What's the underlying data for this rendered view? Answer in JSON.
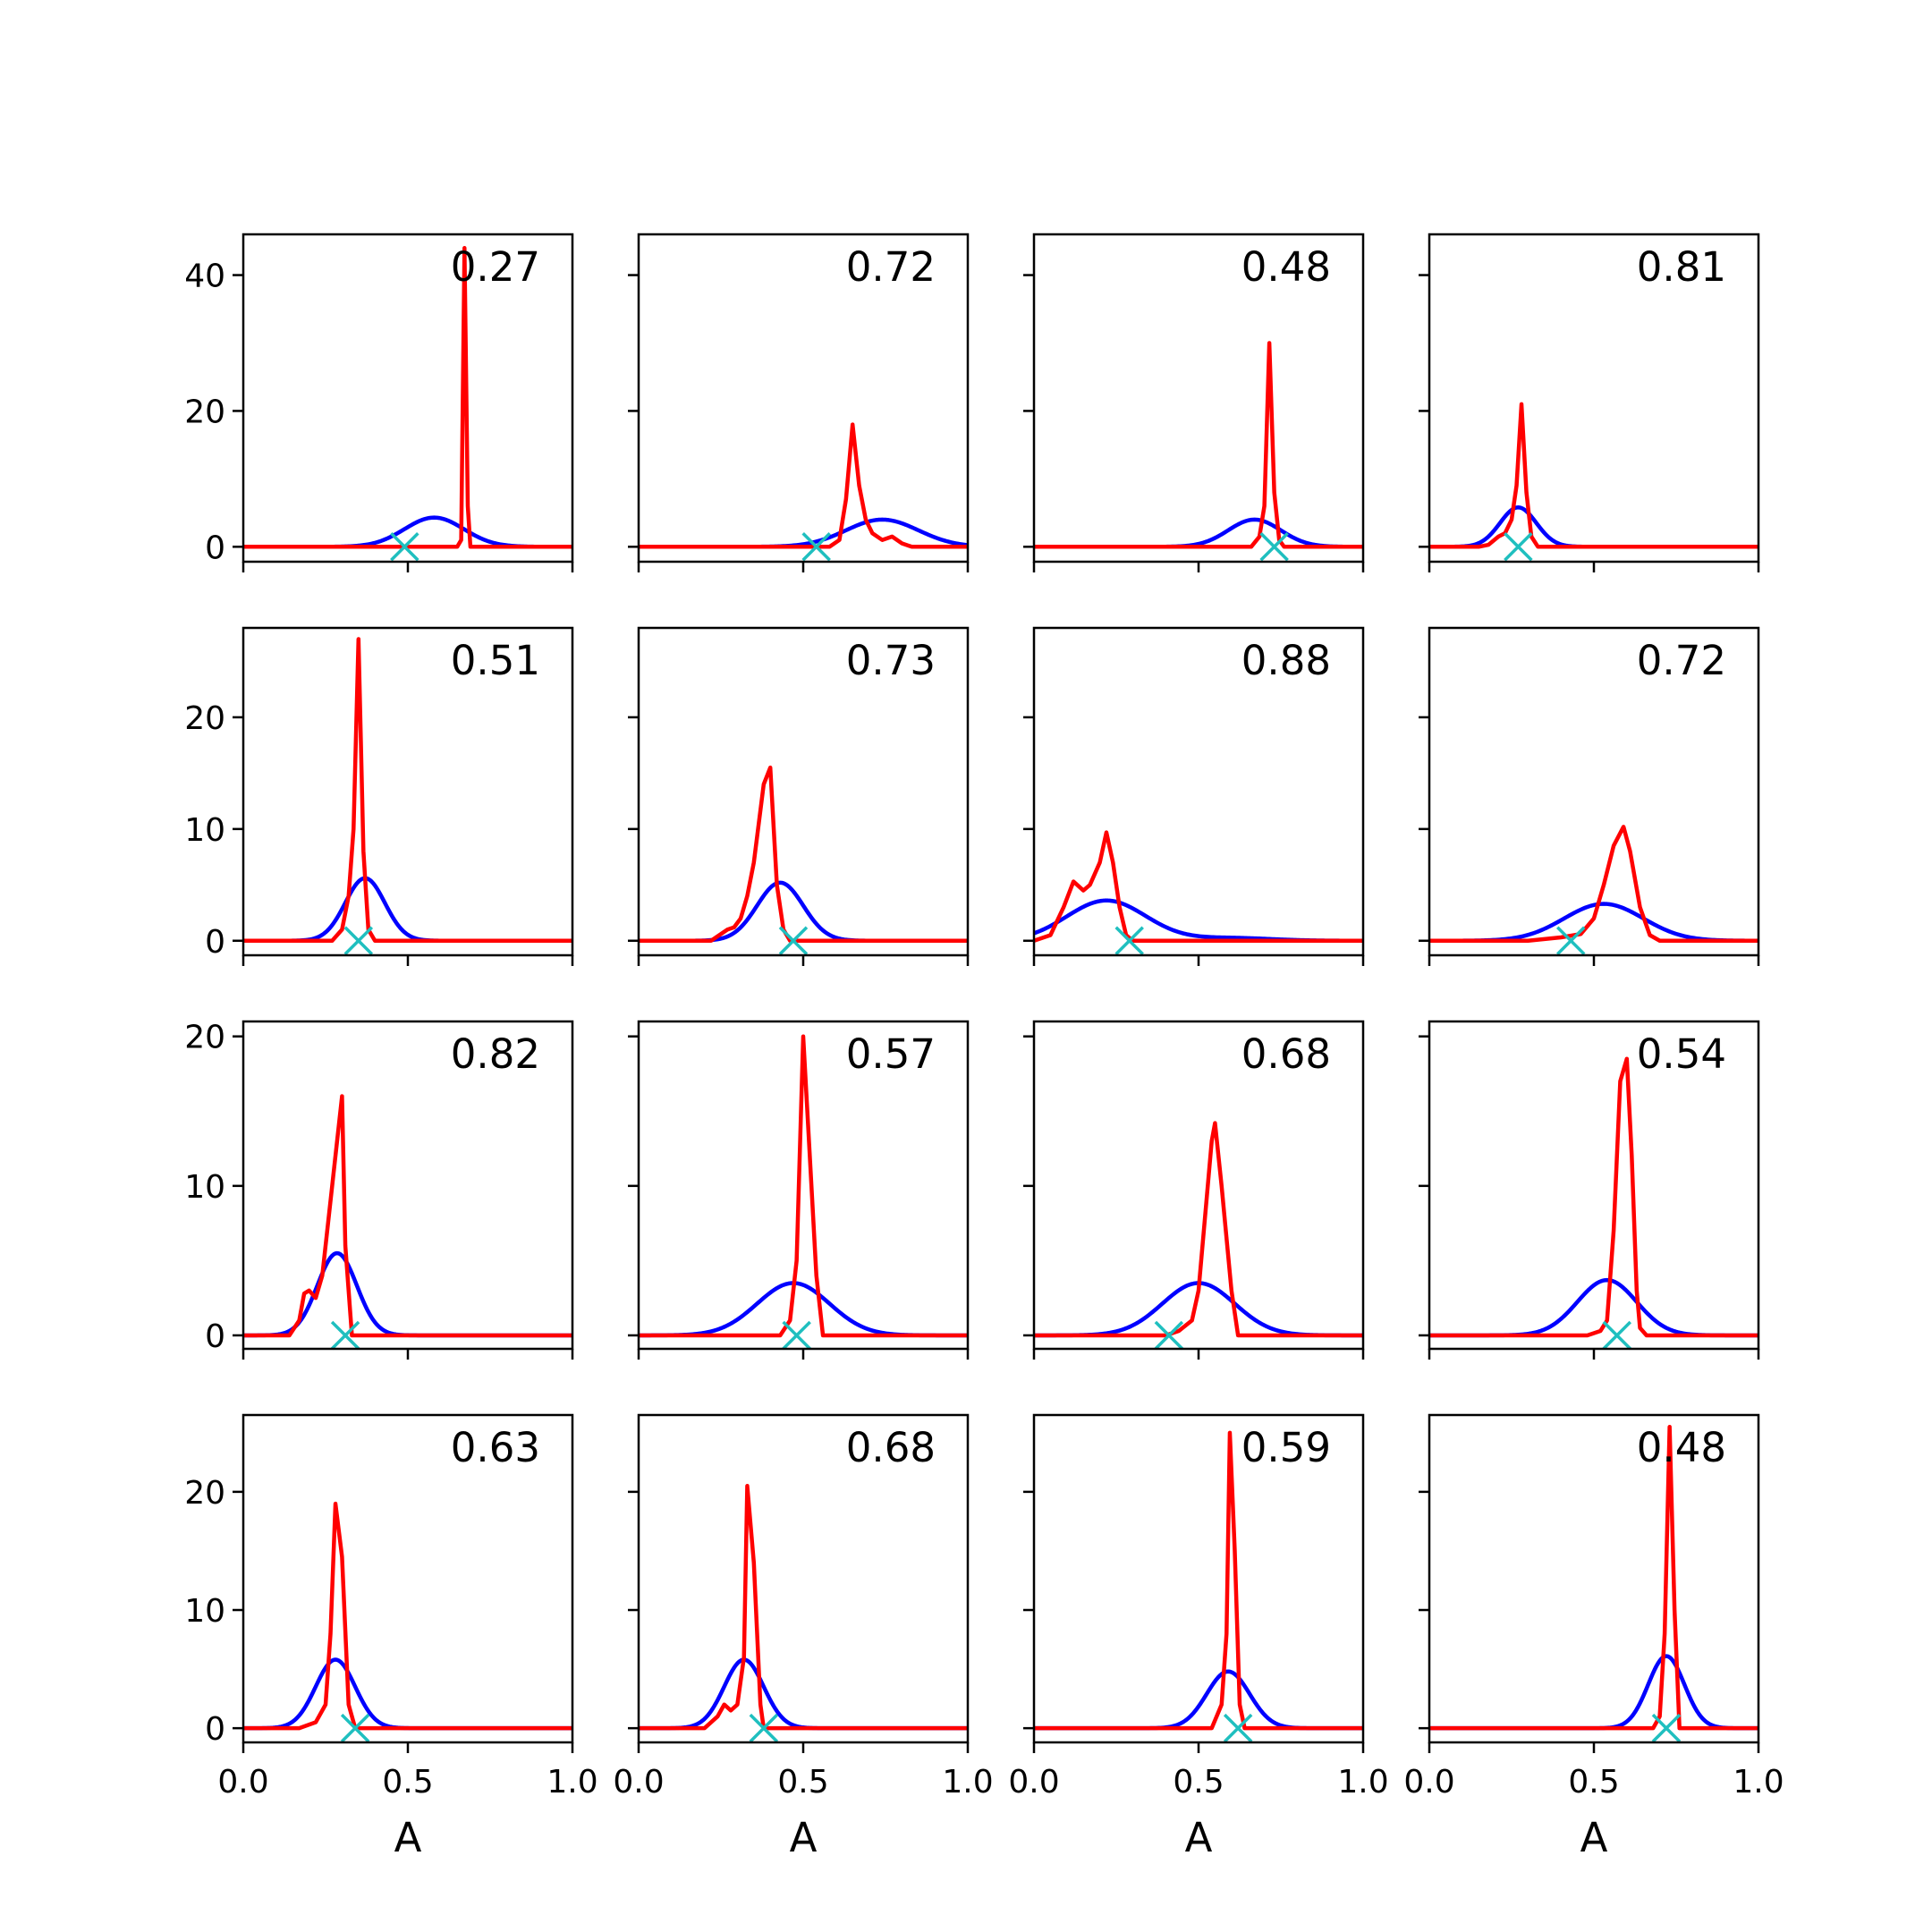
{
  "colors": {
    "prior": "#0000ff",
    "posterior": "#ff0000",
    "marker": "#1fbfbf",
    "axis": "#000000"
  },
  "chart_data": {
    "type": "line",
    "layout": "4x4 grid of panels, shared x axis per column, shared y axis per row",
    "xlabel": "A",
    "xlim": [
      0,
      1
    ],
    "xticks": [
      0.0,
      0.5,
      1.0
    ],
    "xtick_labels": [
      "0.0",
      "0.5",
      "1.0"
    ],
    "rows": [
      {
        "ylim": [
          -2.2,
          46
        ],
        "yticks": [
          0,
          20,
          40
        ]
      },
      {
        "ylim": [
          -1.3,
          28
        ],
        "yticks": [
          0,
          10,
          20
        ]
      },
      {
        "ylim": [
          -0.9,
          21
        ],
        "yticks": [
          0,
          10,
          20
        ]
      },
      {
        "ylim": [
          -1.2,
          26.5
        ],
        "yticks": [
          0,
          10,
          20
        ]
      }
    ],
    "panels": [
      {
        "label": "0.27",
        "marker_x": 0.49,
        "prior": {
          "mu": 0.58,
          "sigma": 0.09,
          "peak": 4.3
        },
        "posterior": [
          [
            0.0,
            0
          ],
          [
            0.65,
            0
          ],
          [
            0.662,
            1.0
          ],
          [
            0.672,
            44
          ],
          [
            0.682,
            6
          ],
          [
            0.69,
            0
          ],
          [
            1.0,
            0
          ]
        ]
      },
      {
        "label": "0.72",
        "marker_x": 0.54,
        "prior": {
          "mu": 0.74,
          "sigma": 0.11,
          "peak": 4.0
        },
        "posterior": [
          [
            0.0,
            0
          ],
          [
            0.58,
            0
          ],
          [
            0.61,
            1
          ],
          [
            0.63,
            7
          ],
          [
            0.65,
            18
          ],
          [
            0.67,
            9
          ],
          [
            0.69,
            4
          ],
          [
            0.71,
            2
          ],
          [
            0.74,
            1
          ],
          [
            0.77,
            1.5
          ],
          [
            0.8,
            0.5
          ],
          [
            0.83,
            0
          ],
          [
            1.0,
            0
          ]
        ]
      },
      {
        "label": "0.48",
        "marker_x": 0.73,
        "prior": {
          "mu": 0.67,
          "sigma": 0.08,
          "peak": 4.0
        },
        "posterior": [
          [
            0.0,
            0
          ],
          [
            0.66,
            0
          ],
          [
            0.685,
            1.5
          ],
          [
            0.7,
            6
          ],
          [
            0.715,
            30
          ],
          [
            0.73,
            8
          ],
          [
            0.745,
            1
          ],
          [
            0.76,
            0
          ],
          [
            1.0,
            0
          ]
        ]
      },
      {
        "label": "0.81",
        "marker_x": 0.27,
        "prior": {
          "mu": 0.27,
          "sigma": 0.055,
          "peak": 5.8
        },
        "posterior": [
          [
            0.0,
            0
          ],
          [
            0.15,
            0
          ],
          [
            0.18,
            0.3
          ],
          [
            0.21,
            1.5
          ],
          [
            0.23,
            2
          ],
          [
            0.25,
            4
          ],
          [
            0.265,
            9
          ],
          [
            0.28,
            21
          ],
          [
            0.295,
            8
          ],
          [
            0.31,
            1.5
          ],
          [
            0.33,
            0
          ],
          [
            1.0,
            0
          ]
        ]
      },
      {
        "label": "0.51",
        "marker_x": 0.35,
        "prior": {
          "mu": 0.37,
          "sigma": 0.06,
          "peak": 5.6
        },
        "posterior": [
          [
            0.0,
            0
          ],
          [
            0.27,
            0
          ],
          [
            0.3,
            1
          ],
          [
            0.32,
            4
          ],
          [
            0.335,
            10
          ],
          [
            0.35,
            27
          ],
          [
            0.365,
            8
          ],
          [
            0.38,
            1
          ],
          [
            0.4,
            0
          ],
          [
            1.0,
            0
          ]
        ]
      },
      {
        "label": "0.73",
        "marker_x": 0.47,
        "prior": {
          "mu": 0.43,
          "sigma": 0.07,
          "peak": 5.2
        },
        "posterior": [
          [
            0.0,
            0
          ],
          [
            0.22,
            0
          ],
          [
            0.27,
            1
          ],
          [
            0.29,
            1.2
          ],
          [
            0.31,
            2
          ],
          [
            0.33,
            4
          ],
          [
            0.35,
            7
          ],
          [
            0.38,
            14
          ],
          [
            0.4,
            15.5
          ],
          [
            0.42,
            5
          ],
          [
            0.44,
            1
          ],
          [
            0.46,
            0
          ],
          [
            1.0,
            0
          ]
        ]
      },
      {
        "label": "0.88",
        "marker_x": 0.29,
        "prior": {
          "mu": 0.22,
          "sigma": 0.12,
          "peak": 3.6,
          "tail": 0.25
        },
        "posterior": [
          [
            0.0,
            0
          ],
          [
            0.05,
            0.5
          ],
          [
            0.09,
            3
          ],
          [
            0.12,
            5.3
          ],
          [
            0.15,
            4.5
          ],
          [
            0.17,
            5
          ],
          [
            0.2,
            7
          ],
          [
            0.22,
            9.7
          ],
          [
            0.24,
            7
          ],
          [
            0.26,
            3
          ],
          [
            0.28,
            0.5
          ],
          [
            0.3,
            0
          ],
          [
            1.0,
            0
          ]
        ]
      },
      {
        "label": "0.72",
        "marker_x": 0.43,
        "prior": {
          "mu": 0.53,
          "sigma": 0.12,
          "peak": 3.3
        },
        "posterior": [
          [
            0.0,
            0
          ],
          [
            0.3,
            0
          ],
          [
            0.4,
            0.3
          ],
          [
            0.46,
            0.6
          ],
          [
            0.5,
            2
          ],
          [
            0.53,
            5
          ],
          [
            0.56,
            8.5
          ],
          [
            0.59,
            10.2
          ],
          [
            0.61,
            8
          ],
          [
            0.64,
            3
          ],
          [
            0.67,
            0.5
          ],
          [
            0.7,
            0
          ],
          [
            1.0,
            0
          ]
        ]
      },
      {
        "label": "0.82",
        "marker_x": 0.31,
        "prior": {
          "mu": 0.285,
          "sigma": 0.06,
          "peak": 5.5
        },
        "posterior": [
          [
            0.0,
            0
          ],
          [
            0.14,
            0
          ],
          [
            0.17,
            1
          ],
          [
            0.185,
            2.8
          ],
          [
            0.2,
            3
          ],
          [
            0.22,
            2.5
          ],
          [
            0.24,
            4
          ],
          [
            0.27,
            10
          ],
          [
            0.3,
            16
          ],
          [
            0.31,
            6
          ],
          [
            0.33,
            0
          ],
          [
            1.0,
            0
          ]
        ]
      },
      {
        "label": "0.57",
        "marker_x": 0.48,
        "prior": {
          "mu": 0.47,
          "sigma": 0.11,
          "peak": 3.5
        },
        "posterior": [
          [
            0.0,
            0
          ],
          [
            0.43,
            0
          ],
          [
            0.46,
            1
          ],
          [
            0.48,
            5
          ],
          [
            0.5,
            20
          ],
          [
            0.52,
            12
          ],
          [
            0.54,
            4
          ],
          [
            0.56,
            0
          ],
          [
            1.0,
            0
          ]
        ]
      },
      {
        "label": "0.68",
        "marker_x": 0.41,
        "prior": {
          "mu": 0.5,
          "sigma": 0.11,
          "peak": 3.5
        },
        "posterior": [
          [
            0.0,
            0
          ],
          [
            0.4,
            0
          ],
          [
            0.44,
            0.3
          ],
          [
            0.48,
            1
          ],
          [
            0.5,
            3
          ],
          [
            0.52,
            8
          ],
          [
            0.54,
            13
          ],
          [
            0.55,
            14.2
          ],
          [
            0.57,
            10
          ],
          [
            0.6,
            3
          ],
          [
            0.62,
            0
          ],
          [
            1.0,
            0
          ]
        ]
      },
      {
        "label": "0.54",
        "marker_x": 0.57,
        "prior": {
          "mu": 0.54,
          "sigma": 0.09,
          "peak": 3.7
        },
        "posterior": [
          [
            0.0,
            0
          ],
          [
            0.48,
            0
          ],
          [
            0.52,
            0.3
          ],
          [
            0.54,
            1
          ],
          [
            0.56,
            7
          ],
          [
            0.58,
            17
          ],
          [
            0.6,
            18.5
          ],
          [
            0.615,
            12
          ],
          [
            0.63,
            3
          ],
          [
            0.64,
            0.5
          ],
          [
            0.66,
            0
          ],
          [
            1.0,
            0
          ]
        ]
      },
      {
        "label": "0.63",
        "marker_x": 0.34,
        "prior": {
          "mu": 0.28,
          "sigma": 0.06,
          "peak": 5.8
        },
        "posterior": [
          [
            0.0,
            0
          ],
          [
            0.17,
            0
          ],
          [
            0.22,
            0.5
          ],
          [
            0.25,
            2
          ],
          [
            0.265,
            8
          ],
          [
            0.28,
            19
          ],
          [
            0.3,
            14.5
          ],
          [
            0.32,
            2
          ],
          [
            0.34,
            0
          ],
          [
            1.0,
            0
          ]
        ]
      },
      {
        "label": "0.68",
        "marker_x": 0.38,
        "prior": {
          "mu": 0.32,
          "sigma": 0.06,
          "peak": 5.8
        },
        "posterior": [
          [
            0.0,
            0
          ],
          [
            0.2,
            0
          ],
          [
            0.24,
            1
          ],
          [
            0.26,
            2
          ],
          [
            0.28,
            1.5
          ],
          [
            0.3,
            2
          ],
          [
            0.32,
            6
          ],
          [
            0.33,
            20.5
          ],
          [
            0.35,
            14
          ],
          [
            0.37,
            2
          ],
          [
            0.38,
            0
          ],
          [
            1.0,
            0
          ]
        ]
      },
      {
        "label": "0.59",
        "marker_x": 0.62,
        "prior": {
          "mu": 0.59,
          "sigma": 0.065,
          "peak": 4.8
        },
        "posterior": [
          [
            0.0,
            0
          ],
          [
            0.54,
            0
          ],
          [
            0.57,
            2
          ],
          [
            0.585,
            8
          ],
          [
            0.595,
            25
          ],
          [
            0.61,
            15
          ],
          [
            0.625,
            2
          ],
          [
            0.64,
            0
          ],
          [
            1.0,
            0
          ]
        ]
      },
      {
        "label": "0.48",
        "marker_x": 0.72,
        "prior": {
          "mu": 0.72,
          "sigma": 0.055,
          "peak": 6.1
        },
        "posterior": [
          [
            0.0,
            0
          ],
          [
            0.68,
            0
          ],
          [
            0.7,
            1
          ],
          [
            0.715,
            8
          ],
          [
            0.73,
            25.5
          ],
          [
            0.745,
            10
          ],
          [
            0.76,
            0
          ],
          [
            1.0,
            0
          ]
        ]
      }
    ]
  }
}
